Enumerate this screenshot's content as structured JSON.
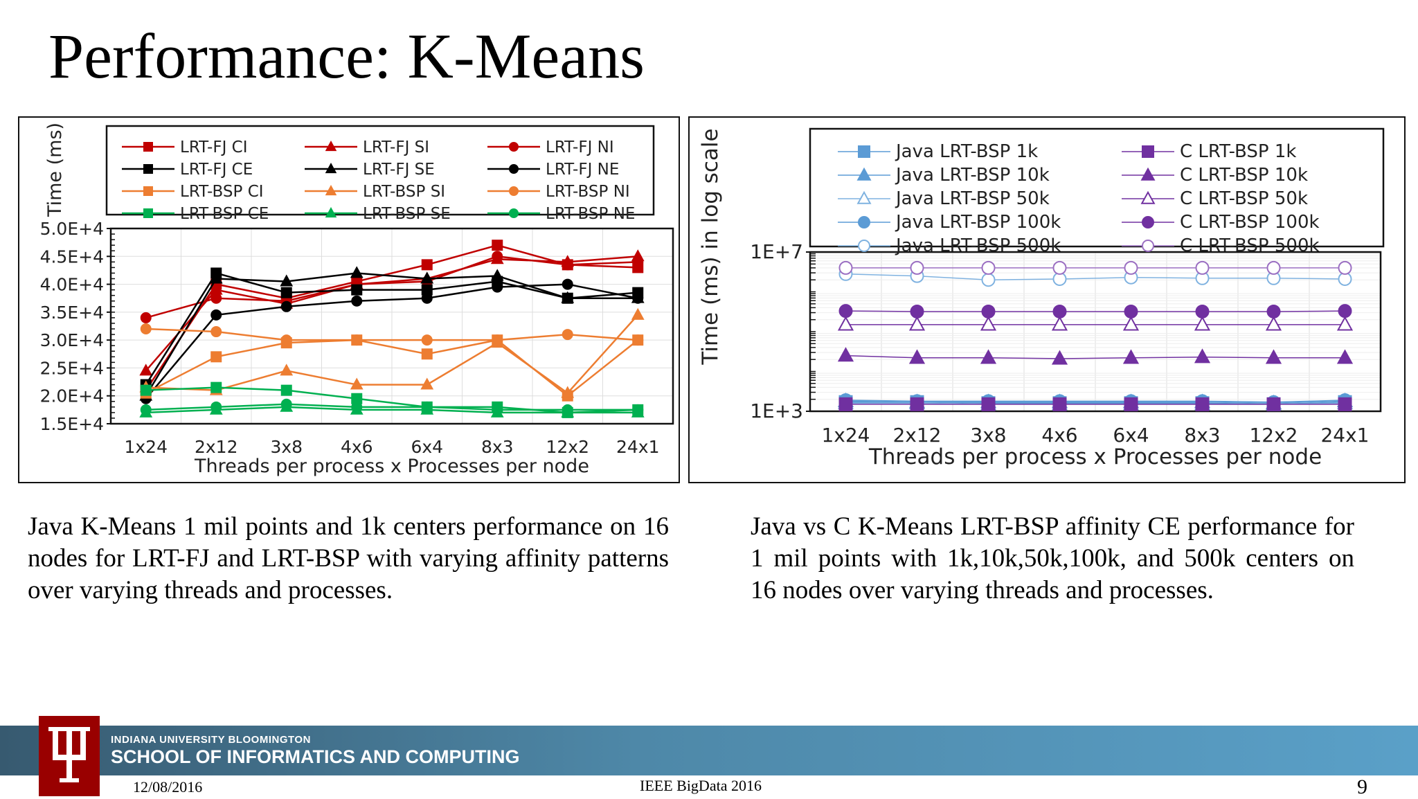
{
  "slide": {
    "title": "Performance: K-Means",
    "caption_left": "Java K-Means 1 mil points and 1k centers performance on 16 nodes for LRT-FJ and LRT-BSP with varying affinity patterns over varying threads and processes.",
    "caption_right": "Java vs C K-Means LRT-BSP affinity CE performance for 1 mil points with 1k,10k,50k,100k, and 500k centers on 16 nodes over varying threads and processes."
  },
  "footer": {
    "university": "INDIANA UNIVERSITY BLOOMINGTON",
    "school": "SCHOOL OF INFORMATICS AND COMPUTING",
    "date": "12/08/2016",
    "conference": "IEEE BigData 2016",
    "page": "9"
  },
  "chart_data": [
    {
      "type": "line",
      "xlabel": "Threads per process x Processes per node",
      "ylabel": "Time (ms)",
      "categories": [
        "1x24",
        "2x12",
        "3x8",
        "4x6",
        "6x4",
        "8x3",
        "12x2",
        "24x1"
      ],
      "ylim": [
        15000,
        50000
      ],
      "yticks": [
        15000,
        20000,
        25000,
        30000,
        35000,
        40000,
        45000,
        50000
      ],
      "ytick_labels": [
        "1.5E+4",
        "2.0E+4",
        "2.5E+4",
        "3.0E+4",
        "3.5E+4",
        "4.0E+4",
        "4.5E+4",
        "5.0E+4"
      ],
      "grid": true,
      "legend_position": "top",
      "series": [
        {
          "name": "LRT-FJ CI",
          "color": "#c00000",
          "marker": "square",
          "values": [
            21000,
            40000,
            37500,
            40500,
            43500,
            47000,
            43500,
            43000
          ]
        },
        {
          "name": "LRT-FJ SI",
          "color": "#c00000",
          "marker": "triangle",
          "values": [
            24500,
            39000,
            36500,
            40000,
            41000,
            44500,
            44000,
            45000
          ]
        },
        {
          "name": "LRT-FJ NI",
          "color": "#c00000",
          "marker": "circle",
          "values": [
            34000,
            37500,
            37000,
            40000,
            40500,
            45000,
            43500,
            44000
          ]
        },
        {
          "name": "LRT-FJ CE",
          "color": "#000000",
          "marker": "square",
          "values": [
            22000,
            42000,
            38500,
            39000,
            39000,
            40500,
            37500,
            38500
          ]
        },
        {
          "name": "LRT-FJ SE",
          "color": "#000000",
          "marker": "triangle",
          "values": [
            20000,
            41000,
            40500,
            42000,
            41000,
            41500,
            37500,
            37500
          ]
        },
        {
          "name": "LRT-FJ NE",
          "color": "#000000",
          "marker": "circle",
          "values": [
            19500,
            34500,
            36000,
            37000,
            37500,
            39500,
            40000,
            37500
          ]
        },
        {
          "name": "LRT-BSP CI",
          "color": "#ed7d31",
          "marker": "square",
          "values": [
            20500,
            27000,
            29500,
            30000,
            27500,
            30000,
            20000,
            30000
          ]
        },
        {
          "name": "LRT-BSP SI",
          "color": "#ed7d31",
          "marker": "triangle",
          "values": [
            21500,
            21000,
            24500,
            22000,
            22000,
            29500,
            20500,
            34500
          ]
        },
        {
          "name": "LRT-BSP NI",
          "color": "#ed7d31",
          "marker": "circle",
          "values": [
            32000,
            31500,
            30000,
            30000,
            30000,
            30000,
            31000,
            30000
          ]
        },
        {
          "name": "LRT-BSP CE",
          "color": "#00b050",
          "marker": "square",
          "values": [
            21000,
            21500,
            21000,
            19500,
            18000,
            18000,
            17000,
            17500
          ]
        },
        {
          "name": "LRT-BSP SE",
          "color": "#00b050",
          "marker": "triangle",
          "values": [
            17000,
            17500,
            18000,
            17500,
            17500,
            17000,
            17000,
            17000
          ]
        },
        {
          "name": "LRT-BSP NE",
          "color": "#00b050",
          "marker": "circle",
          "values": [
            17500,
            18000,
            18500,
            18000,
            18000,
            17500,
            17500,
            17500
          ]
        }
      ]
    },
    {
      "type": "line",
      "xlabel": "Threads per process x Processes per node",
      "ylabel": "Time (ms) in log scale",
      "categories": [
        "1x24",
        "2x12",
        "3x8",
        "4x6",
        "6x4",
        "8x3",
        "12x2",
        "24x1"
      ],
      "log_scale": true,
      "ylim": [
        1000,
        10000000
      ],
      "yticks": [
        1000,
        10000000
      ],
      "ytick_labels": [
        "1E+3",
        "1E+7"
      ],
      "grid": true,
      "legend_position": "top",
      "series": [
        {
          "name": "Java LRT-BSP 1k",
          "color": "#5b9bd5",
          "marker": "square",
          "values": [
            1700,
            1700,
            1600,
            1600,
            1600,
            1600,
            1500,
            1700
          ]
        },
        {
          "name": "Java LRT-BSP 10k",
          "color": "#5b9bd5",
          "marker": "triangle",
          "values": [
            1800,
            1700,
            1700,
            1700,
            1700,
            1700,
            1600,
            1800
          ]
        },
        {
          "name": "Java LRT-BSP 50k",
          "color": "#7fb2e0",
          "marker": "open-triangle",
          "values": [
            1600,
            1600,
            1500,
            1500,
            1500,
            1500,
            1500,
            1600
          ]
        },
        {
          "name": "Java LRT-BSP 100k",
          "color": "#5b9bd5",
          "marker": "circle",
          "values": [
            1900,
            1800,
            1800,
            1800,
            1800,
            1800,
            1700,
            1900
          ]
        },
        {
          "name": "Java LRT-BSP 500k",
          "color": "#7fb2e0",
          "marker": "open-circle",
          "values": [
            2800000,
            2500000,
            2000000,
            2100000,
            2300000,
            2200000,
            2200000,
            2100000
          ]
        },
        {
          "name": "C LRT-BSP 1k",
          "color": "#7030a0",
          "marker": "square",
          "values": [
            1500,
            1500,
            1500,
            1500,
            1500,
            1500,
            1500,
            1500
          ]
        },
        {
          "name": "C LRT-BSP 10k",
          "color": "#7030a0",
          "marker": "triangle",
          "values": [
            25000,
            22000,
            22000,
            21000,
            22000,
            23000,
            22000,
            22000
          ]
        },
        {
          "name": "C LRT-BSP 50k",
          "color": "#7030a0",
          "marker": "open-triangle",
          "values": [
            150000,
            150000,
            150000,
            150000,
            150000,
            150000,
            150000,
            150000
          ]
        },
        {
          "name": "C LRT-BSP 100k",
          "color": "#7030a0",
          "marker": "circle",
          "values": [
            330000,
            320000,
            320000,
            320000,
            320000,
            320000,
            320000,
            330000
          ]
        },
        {
          "name": "C LRT-BSP 500k",
          "color": "#9b6fc2",
          "marker": "open-circle",
          "values": [
            4000000,
            4000000,
            4000000,
            4000000,
            4000000,
            4000000,
            4000000,
            4000000
          ]
        }
      ]
    }
  ]
}
